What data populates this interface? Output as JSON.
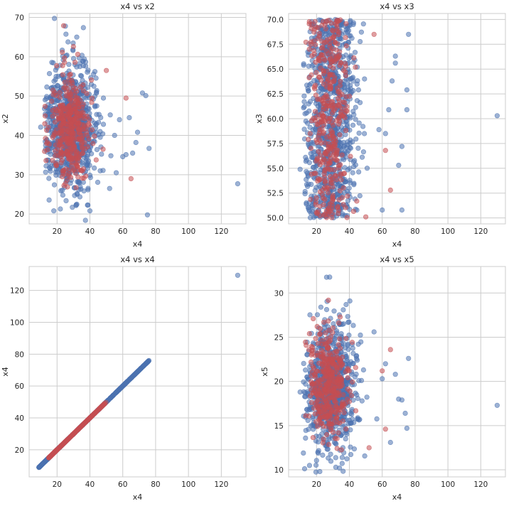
{
  "colors": {
    "series_blue": "#4c72b0",
    "series_red": "#c44e52",
    "grid": "#cccccc",
    "text": "#262626"
  },
  "chart_data": [
    {
      "type": "scatter",
      "title": "x4 vs x2",
      "xlabel": "x4",
      "ylabel": "x2",
      "xlim": [
        3,
        135
      ],
      "ylim": [
        17.5,
        71
      ],
      "xticks": [
        20,
        40,
        60,
        80,
        100,
        120
      ],
      "yticks": [
        20,
        30,
        40,
        50,
        60,
        70
      ],
      "grid": true,
      "series": [
        {
          "color": "#4c72b0",
          "cluster": {
            "cx": 29,
            "cy": 42,
            "sx": 7.5,
            "sy": 7.5,
            "n": 900
          },
          "points": [
            [
              130,
              27.7
            ],
            [
              75,
              19.8
            ],
            [
              76,
              36.7
            ],
            [
              72,
              50.8
            ],
            [
              74,
              50.1
            ],
            [
              68,
              38.2
            ],
            [
              66,
              35.5
            ],
            [
              69,
              40.8
            ],
            [
              64,
              44.5
            ],
            [
              62,
              35.1
            ],
            [
              60,
              34.6
            ],
            [
              58,
              44.0
            ],
            [
              56,
              30.5
            ],
            [
              52,
              26.5
            ],
            [
              55,
              40.0
            ],
            [
              10,
              42.1
            ],
            [
              13,
              36.5
            ],
            [
              18,
              20.8
            ],
            [
              36,
              67.4
            ],
            [
              32,
              65.0
            ],
            [
              40,
              20.8
            ],
            [
              22,
              21.3
            ]
          ]
        },
        {
          "color": "#c44e52",
          "cluster": {
            "cx": 28,
            "cy": 42,
            "sx": 6.0,
            "sy": 7.0,
            "n": 380
          },
          "points": [
            [
              24,
              67.9
            ],
            [
              65,
              29.0
            ],
            [
              62,
              49.5
            ],
            [
              50,
              56.5
            ],
            [
              48,
              36.5
            ]
          ]
        }
      ]
    },
    {
      "type": "scatter",
      "title": "x4 vs x3",
      "xlabel": "x4",
      "ylabel": "x3",
      "xlim": [
        3,
        135
      ],
      "ylim": [
        49.4,
        70.6
      ],
      "xticks": [
        20,
        40,
        60,
        80,
        100,
        120
      ],
      "yticks": [
        50.0,
        52.5,
        55.0,
        57.5,
        60.0,
        62.5,
        65.0,
        67.5,
        70.0
      ],
      "ytick_labels": [
        "50.0",
        "52.5",
        "55.0",
        "57.5",
        "60.0",
        "62.5",
        "65.0",
        "67.5",
        "70.0"
      ],
      "grid": true,
      "series": [
        {
          "color": "#4c72b0",
          "uniform_y": [
            50,
            70
          ],
          "cluster": {
            "cx": 29,
            "sx": 7.5,
            "n": 900
          },
          "points": [
            [
              130,
              60.3
            ],
            [
              76,
              68.5
            ],
            [
              75,
              62.9
            ],
            [
              75,
              60.9
            ],
            [
              72,
              57.2
            ],
            [
              72,
              50.8
            ],
            [
              70,
              55.3
            ],
            [
              68,
              66.3
            ],
            [
              68,
              65.6
            ],
            [
              66,
              63.8
            ],
            [
              64,
              60.9
            ],
            [
              62,
              58.5
            ],
            [
              60,
              50.8
            ],
            [
              58,
              58.9
            ],
            [
              10,
              54.9
            ],
            [
              13,
              60.5
            ],
            [
              15,
              62.8
            ]
          ]
        },
        {
          "color": "#c44e52",
          "uniform_y": [
            50,
            70
          ],
          "cluster": {
            "cx": 28,
            "sx": 6.0,
            "n": 380
          },
          "points": [
            [
              65,
              52.8
            ],
            [
              62,
              56.8
            ],
            [
              55,
              68.5
            ],
            [
              50,
              50.1
            ]
          ]
        }
      ]
    },
    {
      "type": "scatter",
      "title": "x4 vs x4",
      "xlabel": "x4",
      "ylabel": "x4",
      "xlim": [
        3,
        135
      ],
      "ylim": [
        3,
        135
      ],
      "xticks": [
        20,
        40,
        60,
        80,
        100,
        120
      ],
      "yticks": [
        20,
        40,
        60,
        80,
        100,
        120
      ],
      "grid": true,
      "series": [
        {
          "color": "#4c72b0",
          "diagonal": {
            "from": 9,
            "to": 76,
            "n": 700
          },
          "points": [
            [
              130,
              129.5
            ],
            [
              9,
              9
            ],
            [
              75,
              75
            ],
            [
              73,
              73
            ],
            [
              70,
              70
            ],
            [
              68,
              68
            ],
            [
              65,
              65
            ],
            [
              62,
              62
            ]
          ]
        },
        {
          "color": "#c44e52",
          "diagonal": {
            "from": 15,
            "to": 50,
            "n": 300
          },
          "points": []
        }
      ]
    },
    {
      "type": "scatter",
      "title": "x4 vs x5",
      "xlabel": "x4",
      "ylabel": "x5",
      "xlim": [
        3,
        135
      ],
      "ylim": [
        9.2,
        33
      ],
      "xticks": [
        20,
        40,
        60,
        80,
        100,
        120
      ],
      "yticks": [
        10,
        15,
        20,
        25,
        30
      ],
      "grid": true,
      "series": [
        {
          "color": "#4c72b0",
          "cluster": {
            "cx": 29,
            "cy": 19.3,
            "sx": 7.5,
            "sy": 3.4,
            "n": 900
          },
          "points": [
            [
              130,
              17.3
            ],
            [
              28,
              31.8
            ],
            [
              76,
              22.6
            ],
            [
              75,
              14.7
            ],
            [
              74,
              16.4
            ],
            [
              72,
              17.9
            ],
            [
              70,
              18.0
            ],
            [
              68,
              20.8
            ],
            [
              65,
              13.1
            ],
            [
              62,
              22.0
            ],
            [
              60,
              20.3
            ],
            [
              10,
              18.8
            ],
            [
              12,
              11.9
            ],
            [
              22,
              9.8
            ],
            [
              34,
              10.2
            ],
            [
              38,
              28.7
            ],
            [
              55,
              25.6
            ]
          ]
        },
        {
          "color": "#c44e52",
          "cluster": {
            "cx": 28,
            "cy": 19.5,
            "sx": 6.0,
            "sy": 3.0,
            "n": 380
          },
          "points": [
            [
              18,
              27.1
            ],
            [
              65,
              23.6
            ],
            [
              62,
              14.6
            ],
            [
              52,
              12.5
            ],
            [
              60,
              21.2
            ]
          ]
        }
      ]
    }
  ]
}
